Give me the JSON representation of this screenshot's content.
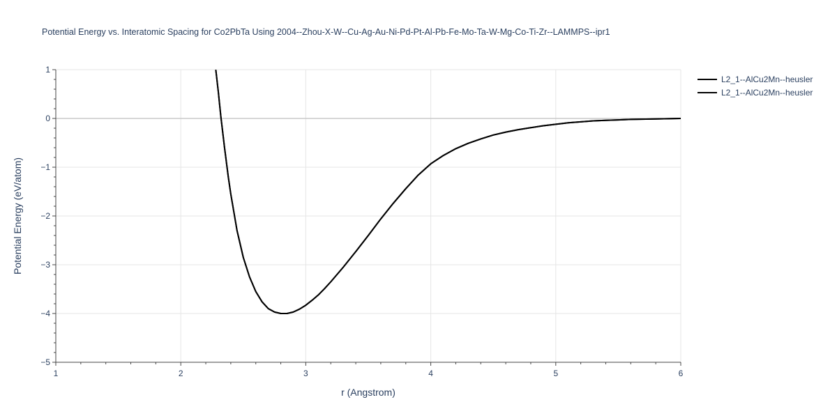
{
  "chart_data": {
    "type": "line",
    "title": "Potential Energy vs. Interatomic Spacing for Co2PbTa Using 2004--Zhou-X-W--Cu-Ag-Au-Ni-Pd-Pt-Al-Pb-Fe-Mo-Ta-W-Mg-Co-Ti-Zr--LAMMPS--ipr1",
    "xlabel": "r (Angstrom)",
    "ylabel": "Potential Energy (eV/atom)",
    "xlim": [
      1,
      6
    ],
    "ylim": [
      -5,
      1
    ],
    "x_ticks": [
      "1",
      "2",
      "3",
      "4",
      "5",
      "6"
    ],
    "y_ticks": [
      "1",
      "0",
      "−1",
      "−2",
      "−3",
      "−4",
      "−5"
    ],
    "grid": true,
    "legend_position": "top-right",
    "series": [
      {
        "name": "L2_1--AlCu2Mn--heusler",
        "color": "#000000",
        "x": [
          2.28,
          2.3,
          2.32,
          2.35,
          2.38,
          2.4,
          2.45,
          2.5,
          2.55,
          2.6,
          2.65,
          2.7,
          2.75,
          2.8,
          2.85,
          2.9,
          2.95,
          3.0,
          3.05,
          3.1,
          3.15,
          3.2,
          3.3,
          3.4,
          3.5,
          3.6,
          3.7,
          3.8,
          3.9,
          4.0,
          4.1,
          4.2,
          4.3,
          4.4,
          4.5,
          4.6,
          4.7,
          4.8,
          4.9,
          5.0,
          5.1,
          5.2,
          5.3,
          5.4,
          5.6,
          5.8,
          6.0
        ],
        "y": [
          1.0,
          0.55,
          0.05,
          -0.6,
          -1.2,
          -1.55,
          -2.3,
          -2.85,
          -3.25,
          -3.55,
          -3.76,
          -3.9,
          -3.97,
          -4.0,
          -4.0,
          -3.97,
          -3.91,
          -3.83,
          -3.73,
          -3.62,
          -3.49,
          -3.35,
          -3.05,
          -2.73,
          -2.4,
          -2.06,
          -1.74,
          -1.44,
          -1.16,
          -0.93,
          -0.76,
          -0.62,
          -0.51,
          -0.42,
          -0.34,
          -0.28,
          -0.23,
          -0.19,
          -0.15,
          -0.12,
          -0.09,
          -0.07,
          -0.05,
          -0.04,
          -0.02,
          -0.01,
          0.0
        ]
      },
      {
        "name": "L2_1--AlCu2Mn--heusler",
        "color": "#000000",
        "x": [
          2.28,
          2.3,
          2.32,
          2.35,
          2.38,
          2.4,
          2.45,
          2.5,
          2.55,
          2.6,
          2.65,
          2.7,
          2.75,
          2.8,
          2.85,
          2.9,
          2.95,
          3.0,
          3.05,
          3.1,
          3.15,
          3.2,
          3.3,
          3.4,
          3.5,
          3.6,
          3.7,
          3.8,
          3.9,
          4.0,
          4.1,
          4.2,
          4.3,
          4.4,
          4.5,
          4.6,
          4.7,
          4.8,
          4.9,
          5.0,
          5.1,
          5.2,
          5.3,
          5.4,
          5.6,
          5.8,
          6.0
        ],
        "y": [
          1.0,
          0.55,
          0.05,
          -0.6,
          -1.2,
          -1.55,
          -2.3,
          -2.85,
          -3.25,
          -3.55,
          -3.76,
          -3.9,
          -3.97,
          -4.0,
          -4.0,
          -3.97,
          -3.91,
          -3.83,
          -3.73,
          -3.62,
          -3.49,
          -3.35,
          -3.05,
          -2.73,
          -2.4,
          -2.06,
          -1.74,
          -1.44,
          -1.16,
          -0.93,
          -0.76,
          -0.62,
          -0.51,
          -0.42,
          -0.34,
          -0.28,
          -0.23,
          -0.19,
          -0.15,
          -0.12,
          -0.09,
          -0.07,
          -0.05,
          -0.04,
          -0.02,
          -0.01,
          0.0
        ]
      }
    ]
  }
}
